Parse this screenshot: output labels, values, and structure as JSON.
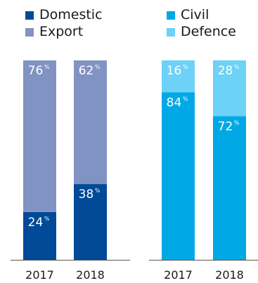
{
  "chart_data": [
    {
      "type": "bar",
      "stacked": true,
      "categories": [
        "2017",
        "2018"
      ],
      "series": [
        {
          "name": "Domestic",
          "values": [
            24,
            38
          ],
          "color": "#004a98"
        },
        {
          "name": "Export",
          "values": [
            76,
            62
          ],
          "color": "#8193c3"
        }
      ],
      "value_suffix": "%",
      "ylim": [
        0,
        100
      ],
      "grid": false,
      "legend": "top-left"
    },
    {
      "type": "bar",
      "stacked": true,
      "categories": [
        "2017",
        "2018"
      ],
      "series": [
        {
          "name": "Civil",
          "values": [
            84,
            72
          ],
          "color": "#00a9e6"
        },
        {
          "name": "Defence",
          "values": [
            16,
            28
          ],
          "color": "#6dd1f8"
        }
      ],
      "value_suffix": "%",
      "ylim": [
        0,
        100
      ],
      "grid": false,
      "legend": "top-right"
    }
  ]
}
